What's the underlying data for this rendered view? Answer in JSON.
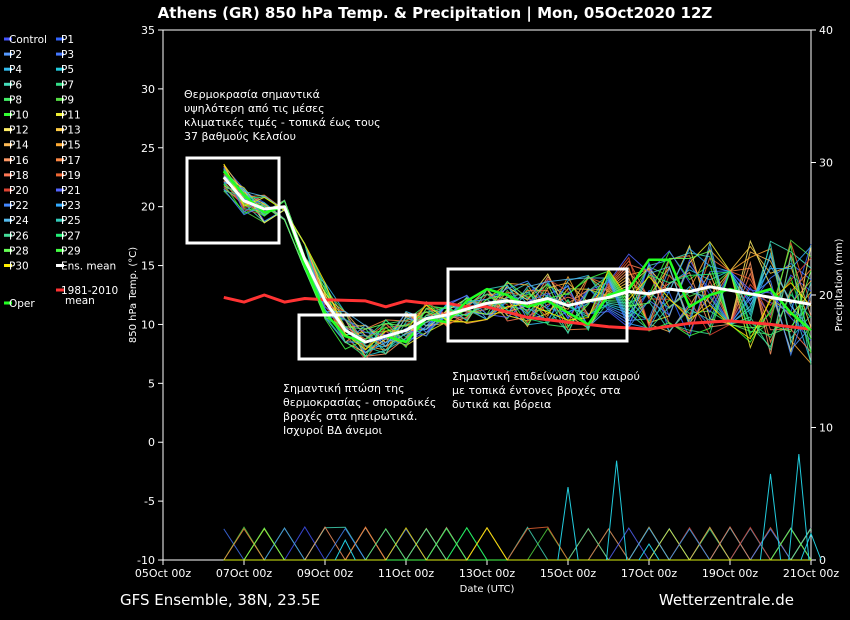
{
  "title": "Athens  (GR)  850 hPa Temp. & Precipitation | Mon, 05Oct2020 12Z",
  "footer_left": "GFS Ensemble, 38N, 23.5E",
  "footer_right": "Wetterzentrale.de",
  "legend": [
    {
      "label": "Control",
      "color": "#4455ff"
    },
    {
      "label": "P1",
      "color": "#3366ff"
    },
    {
      "label": "P2",
      "color": "#5599ff"
    },
    {
      "label": "P3",
      "color": "#4477ff"
    },
    {
      "label": "P4",
      "color": "#33bbee"
    },
    {
      "label": "P5",
      "color": "#22ccdd"
    },
    {
      "label": "P6",
      "color": "#44ddbb"
    },
    {
      "label": "P7",
      "color": "#33dd88"
    },
    {
      "label": "P8",
      "color": "#44ee66"
    },
    {
      "label": "P9",
      "color": "#55dd44"
    },
    {
      "label": "P10",
      "color": "#33ff33"
    },
    {
      "label": "P11",
      "color": "#eeee33"
    },
    {
      "label": "P12",
      "color": "#ffee66"
    },
    {
      "label": "P13",
      "color": "#ffcc44"
    },
    {
      "label": "P14",
      "color": "#ffbb55"
    },
    {
      "label": "P15",
      "color": "#ffaa33"
    },
    {
      "label": "P16",
      "color": "#ff9966"
    },
    {
      "label": "P17",
      "color": "#ff8844"
    },
    {
      "label": "P18",
      "color": "#ff7755"
    },
    {
      "label": "P19",
      "color": "#ee6633"
    },
    {
      "label": "P20",
      "color": "#dd4433"
    },
    {
      "label": "P21",
      "color": "#5566ff"
    },
    {
      "label": "P22",
      "color": "#4488ff"
    },
    {
      "label": "P23",
      "color": "#33aaff"
    },
    {
      "label": "P24",
      "color": "#55bbee"
    },
    {
      "label": "P25",
      "color": "#33ccbb"
    },
    {
      "label": "P26",
      "color": "#44dd99"
    },
    {
      "label": "P27",
      "color": "#22ee77"
    },
    {
      "label": "P28",
      "color": "#66ff55"
    },
    {
      "label": "P29",
      "color": "#44ff44"
    },
    {
      "label": "P30",
      "color": "#ffee00"
    },
    {
      "label": "Ens. mean",
      "color": "#ffffff"
    },
    {
      "label": "1981-2010",
      "label2": "mean",
      "color": "#ff3333"
    },
    {
      "label": "Oper",
      "color": "#22ff22"
    }
  ],
  "annotations": [
    {
      "lines": [
        "Θερμοκρασία σημαντικά",
        "υψηλότερη από τις μέσες",
        "κλιματικές τιμές - τοπικά έως τους",
        "37 βαθμούς Κελσίου"
      ]
    },
    {
      "lines": [
        "Σημαντική πτώση της",
        "θερμοκρασίας - σποραδικές",
        "βροχές στα ηπειρωτικά.",
        "Ισχυροί ΒΔ άνεμοι"
      ]
    },
    {
      "lines": [
        "Σημαντική επιδείνωση του καιρού",
        "με τοπικά έντονες βροχές στα",
        "δυτικά και βόρεια"
      ]
    }
  ],
  "chart_data": {
    "type": "line",
    "title": "Athens  (GR)  850 hPa Temp. & Precipitation | Mon, 05Oct2020 12Z",
    "xlabel": "Date (UTC)",
    "ylabel": "850 hPa Temp. (°C)",
    "y2label": "Precipitation (mm)",
    "xlim_days": [
      0,
      16
    ],
    "xticks": [
      "05Oct 00z",
      "07Oct 00z",
      "09Oct 00z",
      "11Oct 00z",
      "13Oct 00z",
      "15Oct 00z",
      "17Oct 00z",
      "19Oct 00z",
      "21Oct 00z"
    ],
    "ylim": [
      -10,
      35
    ],
    "yticks": [
      -10,
      -5,
      0,
      5,
      10,
      15,
      20,
      25,
      30,
      35
    ],
    "y2lim": [
      0,
      40
    ],
    "y2ticks": [
      0,
      10,
      20,
      30,
      40
    ],
    "grid": false,
    "legend_position": "left",
    "climatology_mean": {
      "name": "1981-2010 mean",
      "x": [
        1.5,
        2,
        2.5,
        3,
        3.5,
        4,
        5,
        5.5,
        6,
        6.5,
        7,
        7.5,
        8,
        9,
        10,
        11,
        12,
        13,
        14,
        15,
        16
      ],
      "y": [
        12.3,
        11.9,
        12.5,
        11.9,
        12.2,
        12.1,
        12.0,
        11.5,
        12.0,
        11.8,
        11.8,
        11.5,
        11.5,
        10.6,
        10.2,
        9.8,
        9.6,
        10.1,
        10.3,
        10.0,
        9.6
      ]
    },
    "ensemble_mean": {
      "name": "Ens. mean",
      "x": [
        1.5,
        2,
        2.5,
        3,
        3.5,
        4,
        4.5,
        5,
        5.5,
        6,
        6.5,
        7,
        7.5,
        8,
        8.5,
        9,
        9.5,
        10,
        10.5,
        11,
        11.5,
        12,
        12.5,
        13,
        13.5,
        14,
        14.5,
        15,
        15.5,
        16
      ],
      "y": [
        22.5,
        20.5,
        19.8,
        20.0,
        15.5,
        12.0,
        9.5,
        8.5,
        9.0,
        9.5,
        10.5,
        10.8,
        11.3,
        11.8,
        12.0,
        11.8,
        12.2,
        11.6,
        12.0,
        12.3,
        12.8,
        12.6,
        13.0,
        12.8,
        13.2,
        12.9,
        12.6,
        12.3,
        12.0,
        11.7
      ]
    },
    "oper": {
      "name": "Oper",
      "x": [
        1.5,
        2,
        2.5,
        3,
        3.5,
        4,
        4.5,
        5,
        5.5,
        6,
        6.5,
        7,
        7.5,
        8,
        8.5,
        9,
        9.5,
        10,
        10.5,
        11,
        11.5,
        12,
        12.5,
        13,
        13.5,
        14,
        14.5,
        15,
        15.5,
        16
      ],
      "y": [
        23.0,
        21.0,
        19.5,
        20.0,
        15.0,
        11.0,
        9.0,
        8.5,
        9.0,
        8.5,
        10.5,
        10.2,
        12.0,
        13.0,
        12.5,
        11.5,
        12.0,
        11.0,
        10.0,
        12.5,
        13.0,
        15.5,
        15.5,
        11.5,
        12.5,
        13.0,
        12.5,
        13.0,
        11.0,
        9.5
      ]
    },
    "precipitation": {
      "name": "Precipitation (mm)",
      "x": [
        4.5,
        10,
        11.2,
        12,
        15,
        15.7,
        16
      ],
      "y": [
        1.5,
        5.5,
        7.5,
        1.2,
        6.5,
        8.0,
        2.0
      ]
    }
  }
}
